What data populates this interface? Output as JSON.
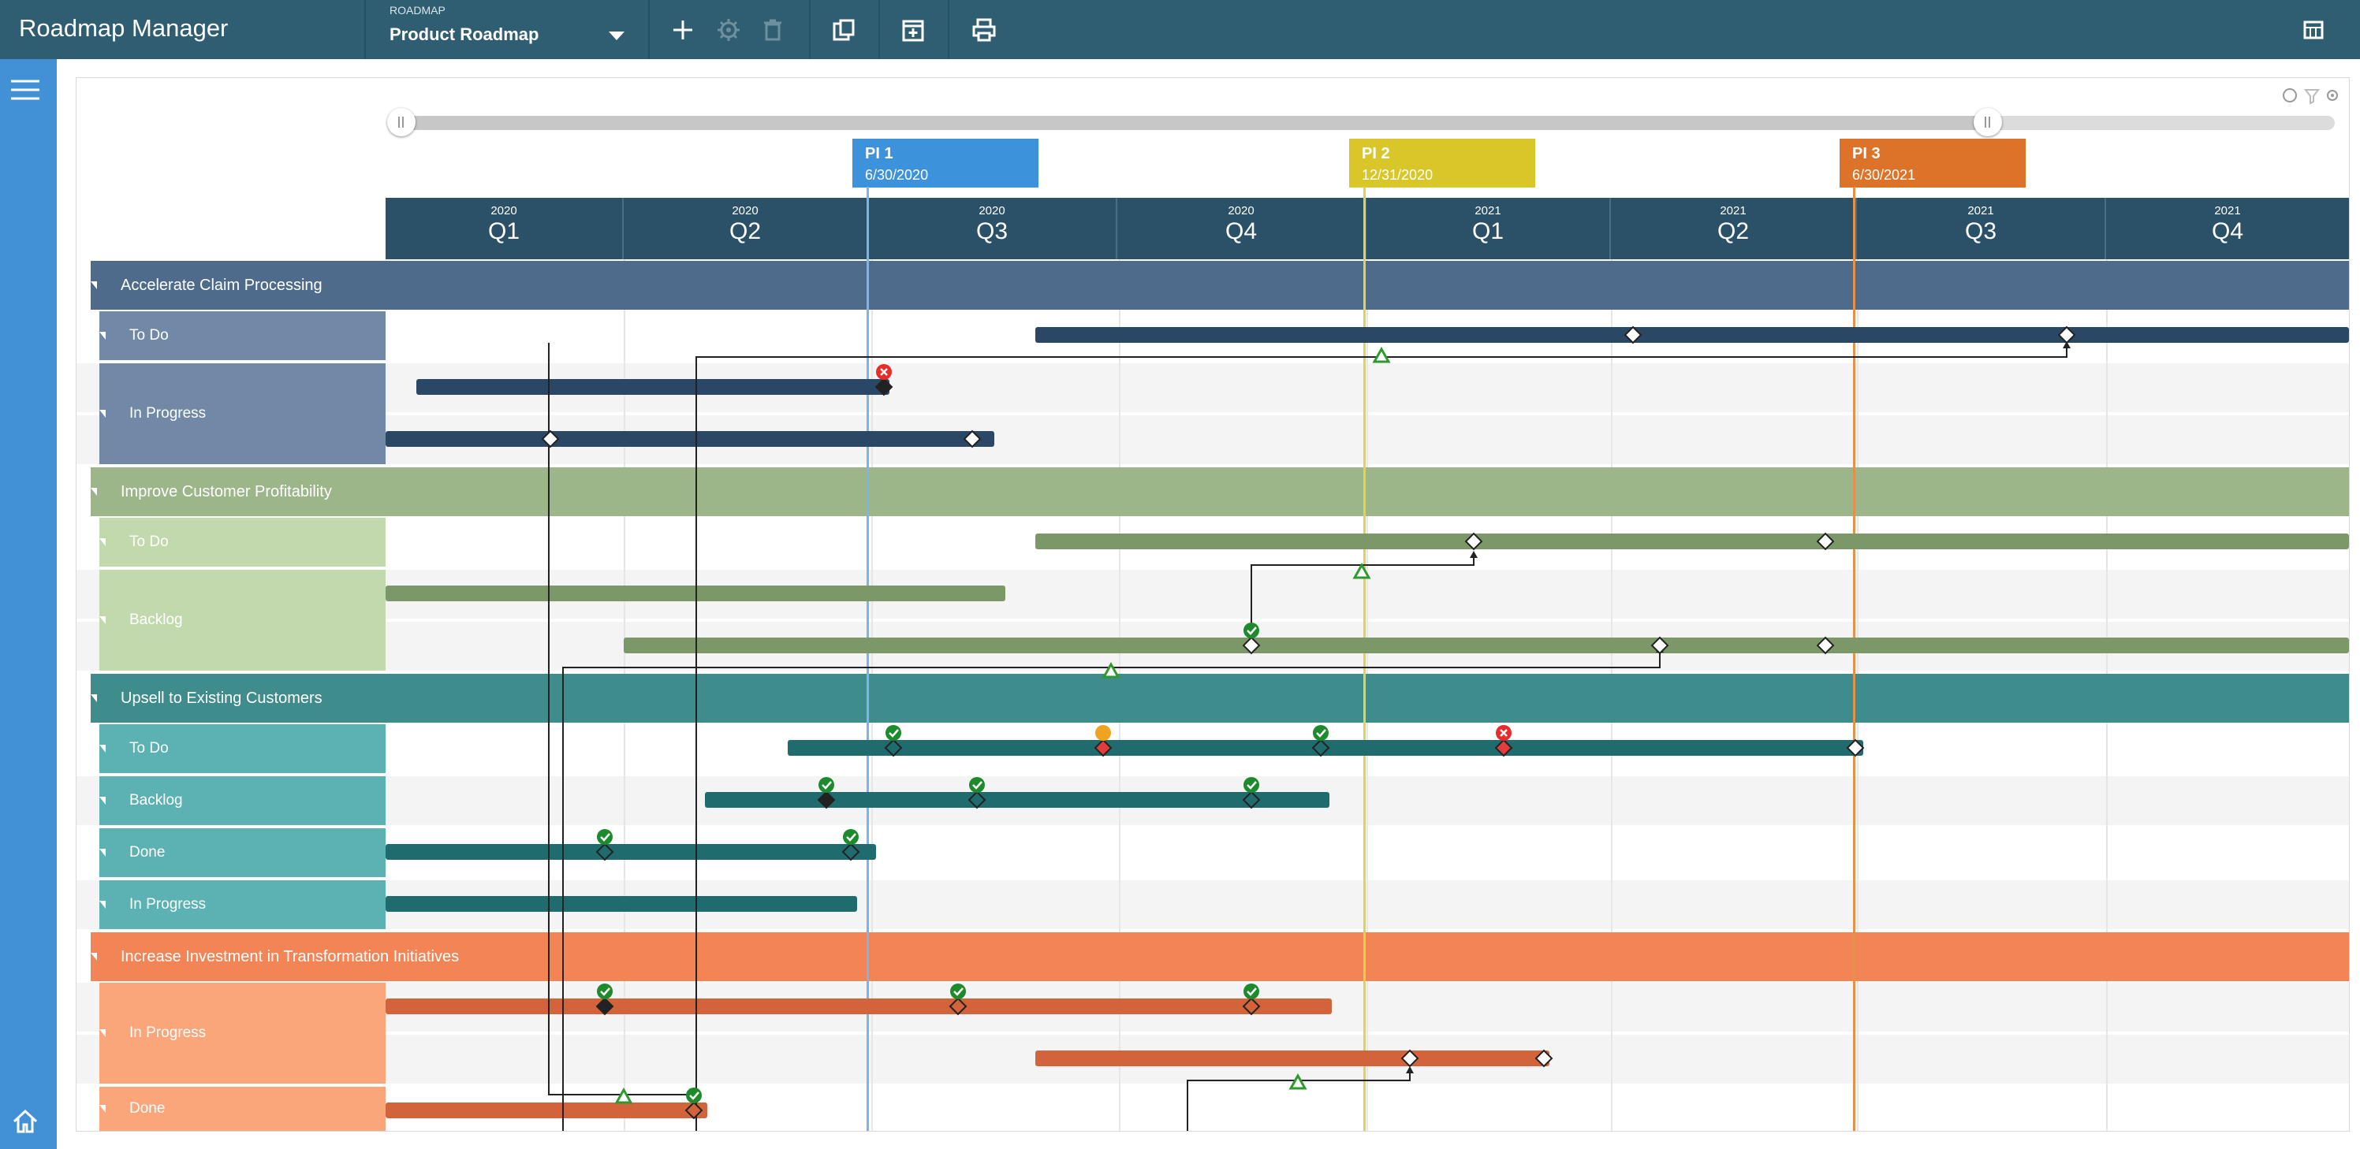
{
  "app": {
    "title": "Roadmap Manager"
  },
  "roadmap_selector": {
    "label": "ROADMAP",
    "value": "Product Roadmap"
  },
  "toolbar": {
    "icons": [
      "add-icon",
      "settings-icon",
      "delete-icon",
      "open-icon",
      "calendar-add-icon",
      "print-icon",
      "layout-icon"
    ]
  },
  "colors": {
    "topbar": "#2f5d72",
    "sidebar": "#4290d6",
    "timeline": "#2b5168"
  },
  "program_increments": [
    {
      "name": "PI 1",
      "date": "6/30/2020",
      "color": "#3d92dc"
    },
    {
      "name": "PI 2",
      "date": "12/31/2020",
      "color": "#d9c628"
    },
    {
      "name": "PI 3",
      "date": "6/30/2021",
      "color": "#dd7328"
    }
  ],
  "quarters": [
    {
      "year": "2020",
      "q": "Q1"
    },
    {
      "year": "2020",
      "q": "Q2"
    },
    {
      "year": "2020",
      "q": "Q3"
    },
    {
      "year": "2020",
      "q": "Q4"
    },
    {
      "year": "2021",
      "q": "Q1"
    },
    {
      "year": "2021",
      "q": "Q2"
    },
    {
      "year": "2021",
      "q": "Q3"
    },
    {
      "year": "2021",
      "q": "Q4"
    }
  ],
  "groups": [
    {
      "name": "Accelerate Claim Processing",
      "color": "#4f6b8c",
      "statuses": [
        {
          "label": "To Do"
        },
        {
          "label": "In Progress"
        }
      ]
    },
    {
      "name": "Improve Customer Profitability",
      "color": "#9cb68a",
      "statuses": [
        {
          "label": "To Do"
        },
        {
          "label": "Backlog"
        }
      ]
    },
    {
      "name": "Upsell to Existing Customers",
      "color": "#3e8c8c",
      "statuses": [
        {
          "label": "To Do"
        },
        {
          "label": "Backlog"
        },
        {
          "label": "Done"
        },
        {
          "label": "In Progress"
        }
      ]
    },
    {
      "name": "Increase Investment in Transformation Initiatives",
      "color": "#f28456",
      "statuses": [
        {
          "label": "In Progress"
        },
        {
          "label": "Done"
        }
      ]
    }
  ]
}
